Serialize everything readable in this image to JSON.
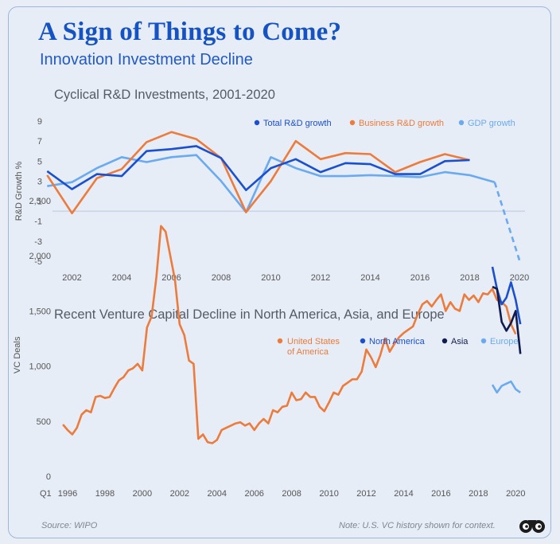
{
  "header": {
    "title": "A Sign of Things to Come?",
    "subtitle": "Innovation Investment Decline"
  },
  "footer": {
    "source": "Source: WIPO",
    "note": "Note: U.S. VC history shown for context."
  },
  "colors": {
    "total_rd": "#1a4fcf",
    "business_rd": "#ec7b3c",
    "gdp": "#6aaaf0",
    "us": "#ec7b3c",
    "north_america": "#1a4fcf",
    "asia": "#0f1c4d",
    "europe": "#6aaaf0"
  },
  "chart_data": [
    {
      "type": "line",
      "title": "Cyclical R&D Investments, 2001-2020",
      "xlabel": "",
      "ylabel": "R&D Growth %",
      "ylim": [
        -5,
        9
      ],
      "y_ticks": [
        "9",
        "7",
        "5",
        "3",
        "1",
        "-1",
        "-3",
        "-5"
      ],
      "x_ticks": [
        "2002",
        "2004",
        "2006",
        "2008",
        "2010",
        "2012",
        "2014",
        "2016",
        "2018",
        "2020"
      ],
      "zero_line": true,
      "legend_position": "top-right",
      "series": [
        {
          "name": "Total R&D growth",
          "x": [
            2001,
            2002,
            2003,
            2004,
            2005,
            2006,
            2007,
            2008,
            2009,
            2010,
            2011,
            2012,
            2013,
            2014,
            2015,
            2016,
            2017,
            2018
          ],
          "values": [
            4.0,
            2.2,
            3.7,
            3.5,
            6.0,
            6.2,
            6.5,
            5.3,
            2.1,
            4.3,
            5.2,
            3.9,
            4.8,
            4.7,
            3.7,
            3.7,
            5.0,
            5.1
          ]
        },
        {
          "name": "Business R&D growth",
          "x": [
            2001,
            2002,
            2003,
            2004,
            2005,
            2006,
            2007,
            2008,
            2009,
            2010,
            2011,
            2012,
            2013,
            2014,
            2015,
            2016,
            2017,
            2018
          ],
          "values": [
            3.6,
            -0.2,
            3.3,
            4.2,
            6.9,
            7.9,
            7.2,
            5.3,
            -0.1,
            3.0,
            7.0,
            5.2,
            5.8,
            5.7,
            3.9,
            4.9,
            5.7,
            5.1
          ]
        },
        {
          "name": "GDP growth",
          "x": [
            2001,
            2002,
            2003,
            2004,
            2005,
            2006,
            2007,
            2008,
            2009,
            2010,
            2011,
            2012,
            2013,
            2014,
            2015,
            2016,
            2017,
            2018,
            2019,
            2020
          ],
          "values": [
            2.5,
            2.9,
            4.3,
            5.4,
            4.9,
            5.4,
            5.6,
            3.0,
            -0.1,
            5.4,
            4.3,
            3.5,
            3.5,
            3.6,
            3.5,
            3.4,
            3.9,
            3.6,
            2.9,
            -4.9
          ],
          "projected_from": 2019
        }
      ]
    },
    {
      "type": "line",
      "title": "Recent Venture Capital Decline in North America, Asia, and Europe",
      "xlabel": "",
      "ylabel": "VC Deals",
      "ylim": [
        0,
        2500
      ],
      "y_ticks": [
        "2,500",
        "2,000",
        "1,500",
        "1,000",
        "500",
        "0"
      ],
      "x_prefix": "Q1",
      "x_ticks": [
        "1996",
        "1998",
        "2000",
        "2002",
        "2004",
        "2006",
        "2008",
        "2010",
        "2012",
        "2014",
        "2016",
        "2018",
        "2020"
      ],
      "legend_position": "top-right",
      "series": [
        {
          "name": "United States of America",
          "legend_lines": [
            "United States",
            "of America"
          ],
          "x": [
            1995.75,
            1996,
            1996.25,
            1996.5,
            1996.75,
            1997,
            1997.25,
            1997.5,
            1997.75,
            1998,
            1998.25,
            1998.5,
            1998.75,
            1999,
            1999.25,
            1999.5,
            1999.75,
            2000,
            2000.25,
            2000.5,
            2000.75,
            2001,
            2001.25,
            2001.5,
            2001.75,
            2002,
            2002.25,
            2002.5,
            2002.75,
            2003,
            2003.25,
            2003.5,
            2003.75,
            2004,
            2004.25,
            2004.5,
            2004.75,
            2005,
            2005.25,
            2005.5,
            2005.75,
            2006,
            2006.25,
            2006.5,
            2006.75,
            2007,
            2007.25,
            2007.5,
            2007.75,
            2008,
            2008.25,
            2008.5,
            2008.75,
            2009,
            2009.25,
            2009.5,
            2009.75,
            2010,
            2010.25,
            2010.5,
            2010.75,
            2011,
            2011.25,
            2011.5,
            2011.75,
            2012,
            2012.25,
            2012.5,
            2012.75,
            2013,
            2013.25,
            2013.5,
            2013.75,
            2014,
            2014.25,
            2014.5,
            2014.75,
            2015,
            2015.25,
            2015.5,
            2015.75,
            2016,
            2016.25,
            2016.5,
            2016.75,
            2017,
            2017.25,
            2017.5,
            2017.75,
            2018,
            2018.25,
            2018.5,
            2018.75,
            2019,
            2019.25,
            2019.5,
            2019.75,
            2020
          ],
          "values": [
            470,
            420,
            380,
            440,
            560,
            600,
            580,
            720,
            730,
            710,
            720,
            800,
            870,
            900,
            960,
            980,
            1020,
            960,
            1350,
            1450,
            1800,
            2270,
            2220,
            2000,
            1780,
            1380,
            1280,
            1050,
            1020,
            340,
            380,
            310,
            300,
            330,
            420,
            440,
            460,
            480,
            490,
            460,
            480,
            420,
            480,
            520,
            480,
            600,
            580,
            630,
            640,
            760,
            690,
            700,
            760,
            720,
            720,
            630,
            590,
            670,
            760,
            740,
            820,
            850,
            880,
            880,
            950,
            1150,
            1080,
            990,
            1100,
            1250,
            1130,
            1200,
            1260,
            1300,
            1330,
            1360,
            1470,
            1560,
            1590,
            1540,
            1600,
            1650,
            1500,
            1580,
            1520,
            1500,
            1650,
            1600,
            1640,
            1580,
            1660,
            1650,
            1700,
            1600,
            1580,
            1540,
            1380,
            1290
          ]
        },
        {
          "name": "North America",
          "x": [
            2018.75,
            2019,
            2019.25,
            2019.5,
            2019.75,
            2020,
            2020.25
          ],
          "values": [
            1900,
            1700,
            1560,
            1620,
            1760,
            1600,
            1380
          ]
        },
        {
          "name": "Asia",
          "x": [
            2018.75,
            2019,
            2019.25,
            2019.5,
            2019.75,
            2020,
            2020.25
          ],
          "values": [
            1720,
            1700,
            1400,
            1320,
            1390,
            1500,
            1110
          ]
        },
        {
          "name": "Europe",
          "x": [
            2018.75,
            2019,
            2019.25,
            2019.5,
            2019.75,
            2020,
            2020.25
          ],
          "values": [
            830,
            760,
            820,
            840,
            860,
            790,
            760
          ]
        }
      ]
    }
  ]
}
